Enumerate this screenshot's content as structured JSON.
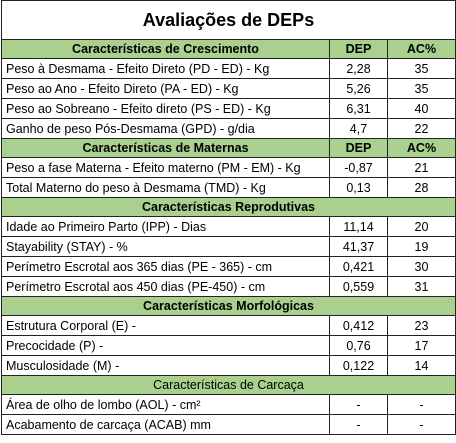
{
  "title": "Avaliações de DEPs",
  "sections": [
    {
      "heading": "Características de Crescimento",
      "columns": [
        "DEP",
        "AC%"
      ],
      "rows": [
        [
          "Peso à Desmama - Efeito Direto (PD - ED) - Kg",
          "2,28",
          "35"
        ],
        [
          "Peso ao Ano - Efeito Direto (PA - ED) - Kg",
          "5,26",
          "35"
        ],
        [
          "Peso ao Sobreano - Efeito direto (PS - ED) - Kg",
          "6,31",
          "40"
        ],
        [
          "Ganho de peso Pós-Desmama (GPD) - g/dia",
          "4,7",
          "22"
        ]
      ]
    },
    {
      "heading": "Características de Maternas",
      "columns": [
        "DEP",
        "AC%"
      ],
      "rows": [
        [
          "Peso a fase Materna - Efeito materno (PM - EM) - Kg",
          "-0,87",
          "21"
        ],
        [
          "Total Materno do peso à Desmama (TMD) - Kg",
          "0,13",
          "28"
        ]
      ]
    },
    {
      "heading": "Características Reprodutivas",
      "rows": [
        [
          "Idade ao Primeiro Parto (IPP) - Dias",
          "11,14",
          "20"
        ],
        [
          "Stayability (STAY) - %",
          "41,37",
          "19"
        ],
        [
          "Perímetro Escrotal aos 365 dias (PE - 365) - cm",
          "0,421",
          "30"
        ],
        [
          "Perímetro Escrotal aos 450 dias (PE-450) - cm",
          "0,559",
          "31"
        ]
      ]
    },
    {
      "heading": "Características Morfológicas",
      "rows": [
        [
          "Estrutura Corporal (E) -",
          "0,412",
          "23"
        ],
        [
          "Precocidade (P) -",
          "0,76",
          "17"
        ],
        [
          "Musculosidade (M) -",
          "0,122",
          "14"
        ]
      ]
    },
    {
      "heading": "Características de Carcaça",
      "rows": [
        [
          "Área de olho de lombo (AOL) - cm²",
          "-",
          "-"
        ],
        [
          "Acabamento de carcaça (ACAB) mm",
          "-",
          "-"
        ]
      ]
    }
  ]
}
